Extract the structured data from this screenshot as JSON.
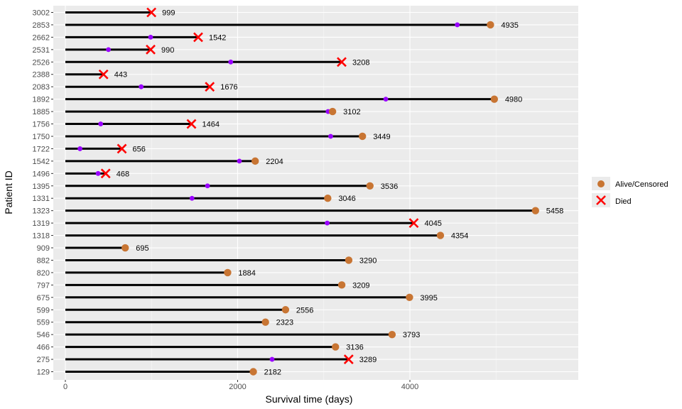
{
  "chart_data": {
    "type": "swimmer",
    "xlabel": "Survival time (days)",
    "ylabel": "Patient ID",
    "xlim": [
      -1400,
      5900
    ],
    "x_ticks": [
      0,
      2000,
      4000
    ],
    "grid": true,
    "legend": {
      "placement": "right",
      "entries": [
        {
          "label": "Alive/Censored",
          "marker": "circle",
          "color": "#c87533"
        },
        {
          "label": "Died",
          "marker": "cross",
          "color": "#ff0000"
        }
      ]
    },
    "event_color": "#9900ff",
    "bar_color": "#000000",
    "patients": [
      {
        "id": "3002",
        "time": 999,
        "status": "died",
        "event": null
      },
      {
        "id": "2853",
        "time": 4935,
        "status": "censored",
        "event": 4550
      },
      {
        "id": "2662",
        "time": 1542,
        "status": "died",
        "event": 990
      },
      {
        "id": "2531",
        "time": 990,
        "status": "died",
        "event": 500
      },
      {
        "id": "2526",
        "time": 3208,
        "status": "died",
        "event": 1920
      },
      {
        "id": "2388",
        "time": 443,
        "status": "died",
        "event": null
      },
      {
        "id": "2083",
        "time": 1676,
        "status": "died",
        "event": 880
      },
      {
        "id": "1892",
        "time": 4980,
        "status": "censored",
        "event": 3720
      },
      {
        "id": "1885",
        "time": 3102,
        "status": "censored",
        "event": 3050
      },
      {
        "id": "1756",
        "time": 1464,
        "status": "died",
        "event": 410
      },
      {
        "id": "1750",
        "time": 3449,
        "status": "censored",
        "event": 3080
      },
      {
        "id": "1722",
        "time": 656,
        "status": "died",
        "event": 170
      },
      {
        "id": "1542",
        "time": 2204,
        "status": "censored",
        "event": 2020
      },
      {
        "id": "1496",
        "time": 468,
        "status": "died",
        "event": 380
      },
      {
        "id": "1395",
        "time": 3536,
        "status": "censored",
        "event": 1650
      },
      {
        "id": "1331",
        "time": 3046,
        "status": "censored",
        "event": 1470
      },
      {
        "id": "1323",
        "time": 5458,
        "status": "censored",
        "event": null
      },
      {
        "id": "1319",
        "time": 4045,
        "status": "died",
        "event": 3040
      },
      {
        "id": "1318",
        "time": 4354,
        "status": "censored",
        "event": null
      },
      {
        "id": "909",
        "time": 695,
        "status": "censored",
        "event": null
      },
      {
        "id": "882",
        "time": 3290,
        "status": "censored",
        "event": null
      },
      {
        "id": "820",
        "time": 1884,
        "status": "censored",
        "event": null
      },
      {
        "id": "797",
        "time": 3209,
        "status": "censored",
        "event": null
      },
      {
        "id": "675",
        "time": 3995,
        "status": "censored",
        "event": null
      },
      {
        "id": "599",
        "time": 2556,
        "status": "censored",
        "event": null
      },
      {
        "id": "559",
        "time": 2323,
        "status": "censored",
        "event": null
      },
      {
        "id": "546",
        "time": 3793,
        "status": "censored",
        "event": null
      },
      {
        "id": "466",
        "time": 3136,
        "status": "censored",
        "event": null
      },
      {
        "id": "275",
        "time": 3289,
        "status": "died",
        "event": 2400
      },
      {
        "id": "129",
        "time": 2182,
        "status": "censored",
        "event": null
      }
    ]
  }
}
